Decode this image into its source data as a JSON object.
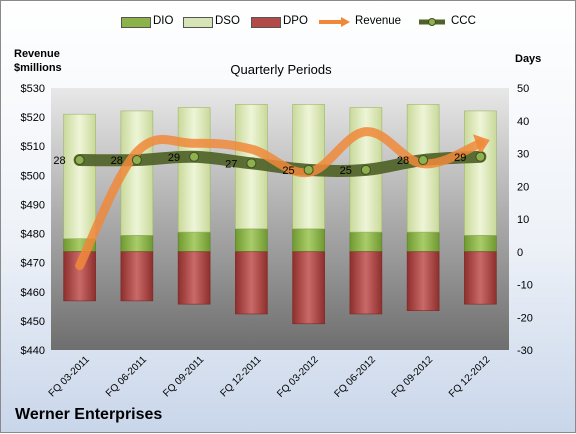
{
  "chart_data": {
    "type": "bar",
    "title": "Quarterly Periods",
    "footer": "Werner Enterprises",
    "left_axis": {
      "label_line1": "Revenue",
      "label_line2": "$millions",
      "range": [
        440,
        530
      ],
      "ticks": [
        "$440",
        "$450",
        "$460",
        "$470",
        "$480",
        "$490",
        "$500",
        "$510",
        "$520",
        "$530"
      ],
      "tick_values": [
        440,
        450,
        460,
        470,
        480,
        490,
        500,
        510,
        520,
        530
      ]
    },
    "right_axis": {
      "label": "Days",
      "range": [
        -30,
        50
      ],
      "ticks": [
        "-30",
        "-20",
        "-10",
        "0",
        "10",
        "20",
        "30",
        "40",
        "50"
      ],
      "tick_values": [
        -30,
        -20,
        -10,
        0,
        10,
        20,
        30,
        40,
        50
      ]
    },
    "categories": [
      "FQ 03-2011",
      "FQ 06-2011",
      "FQ 09-2011",
      "FQ 12-2011",
      "FQ 03-2012",
      "FQ 06-2012",
      "FQ 09-2012",
      "FQ 12-2012"
    ],
    "series": [
      {
        "name": "DIO",
        "axis": "right",
        "values": [
          4,
          5,
          6,
          7,
          7,
          6,
          6,
          5
        ]
      },
      {
        "name": "DSO",
        "axis": "right",
        "values": [
          38,
          38,
          38,
          38,
          38,
          38,
          39,
          38
        ]
      },
      {
        "name": "DPO",
        "axis": "right",
        "values": [
          -15,
          -15,
          -16,
          -19,
          -22,
          -19,
          -18,
          -16
        ]
      },
      {
        "name": "Revenue",
        "axis": "left",
        "values": [
          469,
          508,
          511,
          509,
          501,
          515,
          504,
          511
        ]
      },
      {
        "name": "CCC",
        "axis": "right",
        "values": [
          28,
          28,
          29,
          27,
          25,
          25,
          28,
          29
        ]
      }
    ],
    "ccc_labels": [
      "28",
      "28",
      "29",
      "27",
      "25",
      "25",
      "28",
      "29"
    ],
    "legend_placement": "top",
    "grid": false,
    "colors": {
      "DIO": "#8bb34a",
      "DSO": "#d7e4b5",
      "DPO": "#b24a48",
      "Revenue": "#f0883a",
      "CCC": "#4f6228",
      "plot_bg": "#808080"
    }
  }
}
